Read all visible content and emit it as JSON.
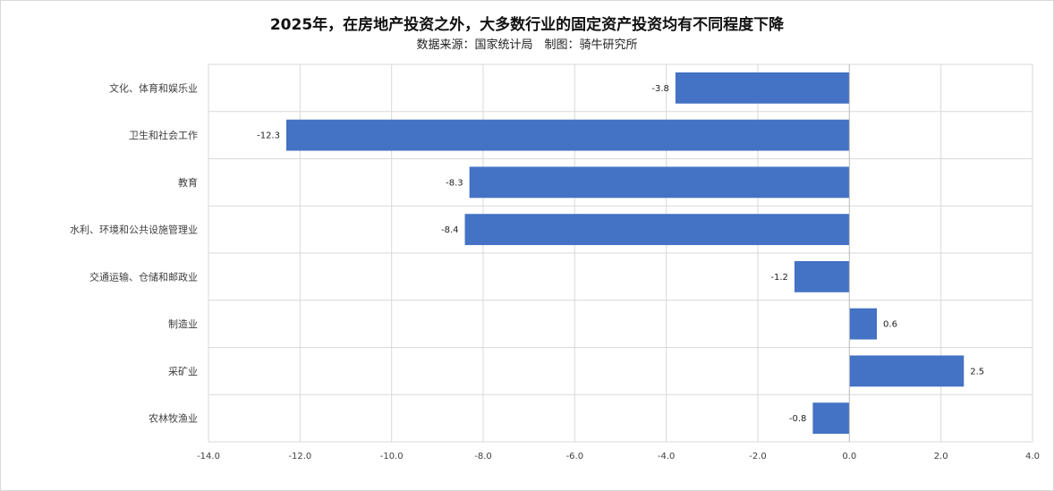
{
  "title": "2025年，在房地产投资之外，大多数行业的固定资产投资均有不同程度下降",
  "subtitle": "数据来源：国家统计局　制图：骑牛研究所",
  "chart_data": {
    "type": "bar",
    "orientation": "horizontal",
    "categories": [
      "文化、体育和娱乐业",
      "卫生和社会工作",
      "教育",
      "水利、环境和公共设施管理业",
      "交通运输、仓储和邮政业",
      "制造业",
      "采矿业",
      "农林牧渔业"
    ],
    "values": [
      -3.8,
      -12.3,
      -8.3,
      -8.4,
      -1.2,
      0.6,
      2.5,
      -0.8
    ],
    "data_labels": [
      "-3.8",
      "-12.3",
      "-8.3",
      "-8.4",
      "-1.2",
      "0.6",
      "2.5",
      "-0.8"
    ],
    "xlim": [
      -14.0,
      4.0
    ],
    "xticks": [
      -14.0,
      -12.0,
      -10.0,
      -8.0,
      -6.0,
      -4.0,
      -2.0,
      0.0,
      2.0,
      4.0
    ],
    "xtick_labels": [
      "-14.0",
      "-12.0",
      "-10.0",
      "-8.0",
      "-6.0",
      "-4.0",
      "-2.0",
      "0.0",
      "2.0",
      "4.0"
    ],
    "grid": true,
    "bar_color": "#4472C4",
    "xlabel": "",
    "ylabel": ""
  }
}
